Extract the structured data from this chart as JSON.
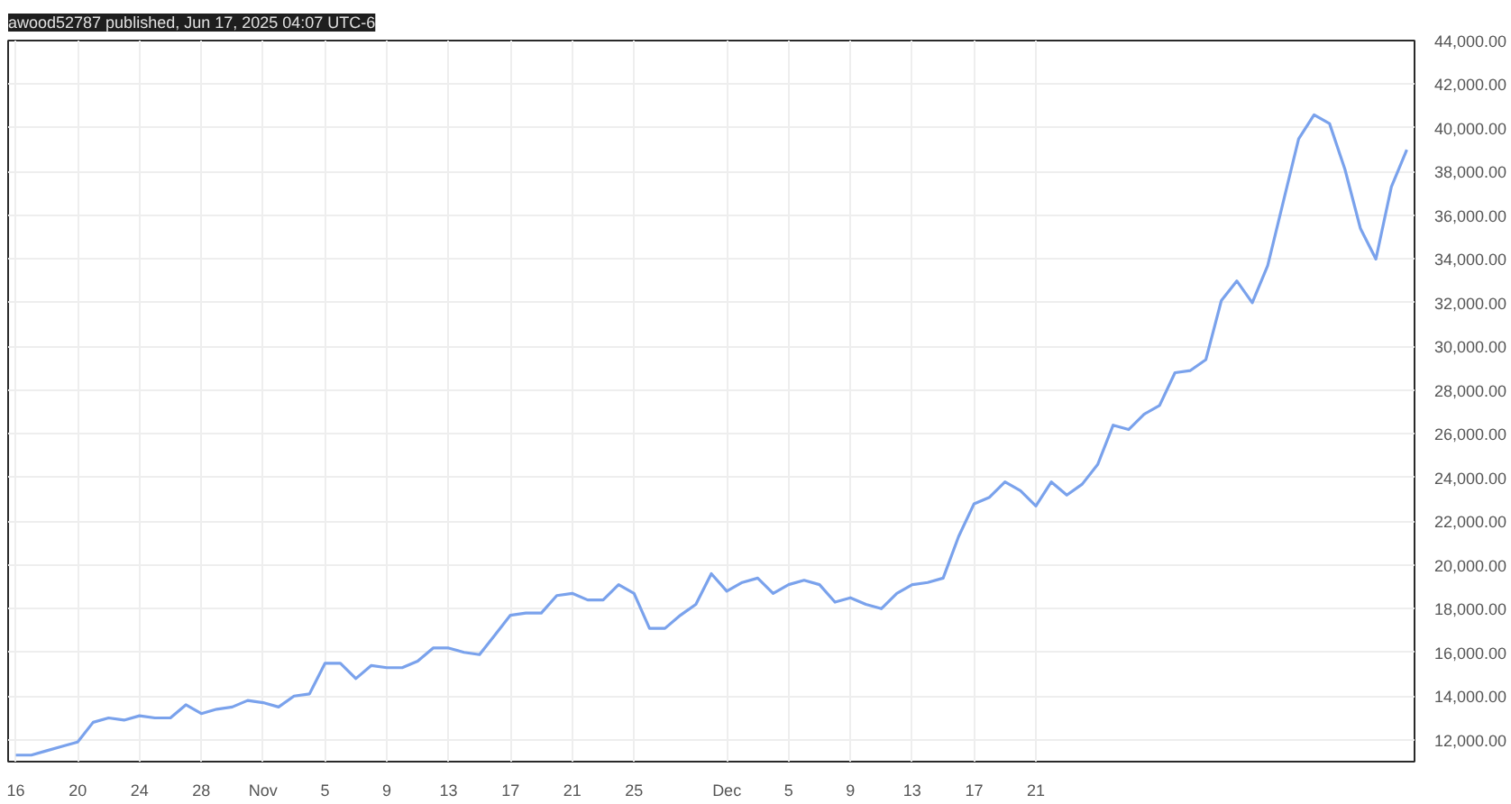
{
  "chart_data": {
    "type": "line",
    "annotations": [
      "awood52787 published, Jun 17, 2025 04:07 UTC-6"
    ],
    "categories": [
      "16",
      null,
      null,
      null,
      "20",
      null,
      null,
      null,
      "24",
      null,
      null,
      null,
      "28",
      null,
      null,
      null,
      "Nov",
      null,
      null,
      null,
      "5",
      null,
      null,
      null,
      "9",
      null,
      null,
      null,
      "13",
      null,
      null,
      null,
      "17",
      null,
      null,
      null,
      "21",
      null,
      null,
      null,
      "25",
      null,
      null,
      null,
      null,
      null,
      "Dec",
      null,
      null,
      null,
      "5",
      null,
      null,
      null,
      "9",
      null,
      null,
      null,
      "13",
      null,
      null,
      null,
      "17",
      null,
      null,
      null,
      "21",
      null,
      null,
      null,
      null,
      null,
      null,
      null,
      null,
      null,
      null,
      null,
      null,
      null,
      null,
      null,
      null,
      null,
      null,
      null,
      null,
      null,
      null,
      null,
      null
    ],
    "series": [
      {
        "color": "#7aa2ec",
        "values": [
          11300,
          11300,
          11500,
          11700,
          11900,
          12800,
          13000,
          12900,
          13100,
          13000,
          13000,
          13600,
          13200,
          13400,
          13500,
          13800,
          13700,
          13500,
          14000,
          14100,
          15500,
          15500,
          14800,
          15400,
          15300,
          15300,
          15600,
          16200,
          16200,
          16000,
          15900,
          16800,
          17700,
          17800,
          17800,
          18600,
          18700,
          18400,
          18400,
          19100,
          18700,
          17100,
          17100,
          17700,
          18200,
          19600,
          18800,
          19200,
          19400,
          18700,
          19100,
          19300,
          19100,
          18300,
          18500,
          18200,
          18000,
          18700,
          19100,
          19200,
          19400,
          21300,
          22800,
          23100,
          23800,
          23400,
          22700,
          23800,
          23200,
          23700,
          24600,
          26400,
          26200,
          26900,
          27300,
          28800,
          28900,
          29400,
          32100,
          33000,
          32000,
          33700,
          36600,
          39500,
          40600,
          40200,
          38100,
          35400,
          34000,
          37300,
          39000
        ]
      }
    ],
    "ylim": [
      11000,
      44000
    ],
    "yticks": [
      {
        "value": 12000,
        "label": "12,000.00"
      },
      {
        "value": 14000,
        "label": "14,000.00"
      },
      {
        "value": 16000,
        "label": "16,000.00"
      },
      {
        "value": 18000,
        "label": "18,000.00"
      },
      {
        "value": 20000,
        "label": "20,000.00"
      },
      {
        "value": 22000,
        "label": "22,000.00"
      },
      {
        "value": 24000,
        "label": "24,000.00"
      },
      {
        "value": 26000,
        "label": "26,000.00"
      },
      {
        "value": 28000,
        "label": "28,000.00"
      },
      {
        "value": 30000,
        "label": "30,000.00"
      },
      {
        "value": 32000,
        "label": "32,000.00"
      },
      {
        "value": 34000,
        "label": "34,000.00"
      },
      {
        "value": 36000,
        "label": "36,000.00"
      },
      {
        "value": 38000,
        "label": "38,000.00"
      },
      {
        "value": 40000,
        "label": "40,000.00"
      },
      {
        "value": 42000,
        "label": "42,000.00"
      },
      {
        "value": 44000,
        "label": "44,000.00"
      }
    ],
    "grid": true,
    "line_style": "solid"
  }
}
